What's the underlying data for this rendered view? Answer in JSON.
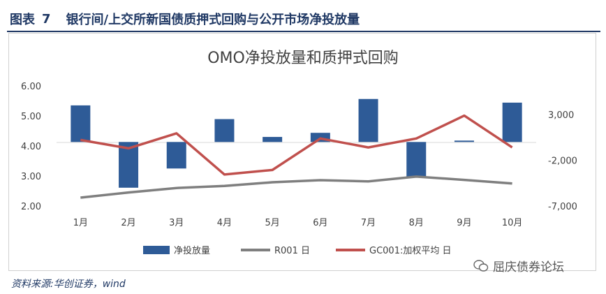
{
  "figure": {
    "label": "图表",
    "number": "7",
    "caption": "银行间/上交所新国债质押式回购与公开市场净投放量"
  },
  "source": "资料来源:华创证券，wind",
  "watermark": "屈庆债券论坛",
  "colors": {
    "heading": "#1f3864",
    "bar": "#2e5b97",
    "r001": "#7f7f7f",
    "gc001": "#c0504d",
    "axis": "#d9d9d9",
    "text": "#404040"
  },
  "chart_data": {
    "type": "bar",
    "title": "OMO净投放量和质押式回购",
    "categories": [
      "1月",
      "2月",
      "3月",
      "4月",
      "5月",
      "6月",
      "7月",
      "8月",
      "9月",
      "10月"
    ],
    "y_left": {
      "ticks": [
        "6.00",
        "5.00",
        "4.00",
        "3.00",
        "2.00"
      ],
      "lim": [
        2.0,
        6.0
      ]
    },
    "y_right": {
      "ticks": [
        "3,000",
        "-2,000",
        "-7,000"
      ],
      "lim": [
        -7000,
        3000
      ]
    },
    "grid": false,
    "legend_position": "bottom",
    "series": [
      {
        "name": "净投放量",
        "type": "bar",
        "axis": "right",
        "values": [
          4000,
          -5000,
          -2900,
          2500,
          550,
          1000,
          4700,
          -3800,
          150,
          4300
        ]
      },
      {
        "name": "R001 日",
        "type": "line",
        "axis": "left",
        "values": [
          2.28,
          2.45,
          2.6,
          2.67,
          2.79,
          2.86,
          2.82,
          2.98,
          2.87,
          2.75
        ]
      },
      {
        "name": "GC001:加权平均 日",
        "type": "line",
        "axis": "left",
        "values": [
          4.2,
          3.92,
          4.42,
          3.05,
          3.2,
          4.25,
          3.95,
          4.25,
          5.01,
          3.95
        ]
      }
    ]
  }
}
